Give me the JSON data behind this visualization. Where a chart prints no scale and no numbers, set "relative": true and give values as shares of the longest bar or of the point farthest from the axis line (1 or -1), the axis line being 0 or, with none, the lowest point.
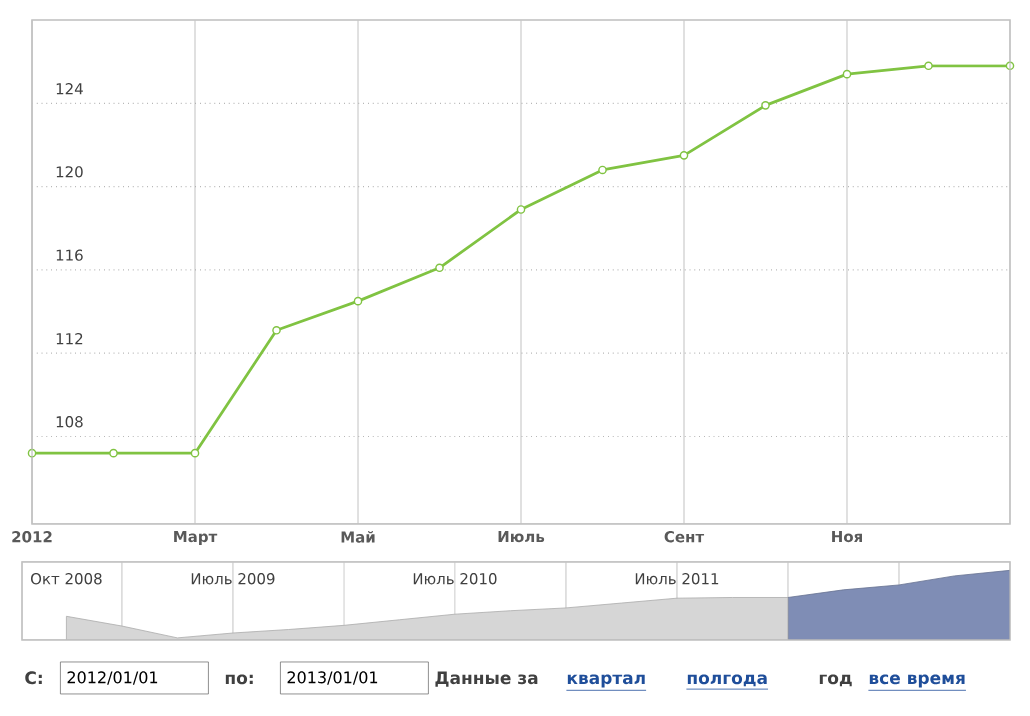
{
  "chart_data": [
    {
      "type": "line",
      "color": "#80c342",
      "marker": "circle",
      "grid": true,
      "categories": [
        "2012",
        null,
        "Март",
        null,
        "Май",
        null,
        "Июль",
        null,
        "Сент",
        null,
        "Ноя",
        null,
        null
      ],
      "values": [
        107.2,
        107.2,
        107.2,
        113.1,
        114.5,
        116.1,
        118.9,
        120.8,
        121.5,
        123.9,
        125.4,
        125.8,
        125.8
      ],
      "ylim": [
        103.8,
        128
      ],
      "yticks": [
        108,
        112,
        116,
        120,
        124
      ]
    },
    {
      "type": "area",
      "relative": true,
      "grid": "x",
      "categories": [
        "Окт 2008",
        null,
        null,
        "Июль 2009",
        null,
        null,
        null,
        "Июль 2010",
        null,
        null,
        null,
        "Июль 2011",
        null,
        null,
        null,
        null,
        null,
        null
      ],
      "series": [
        {
          "color": "#d6d6d6",
          "values": [
            0.34,
            0.2,
            0.03,
            0.1,
            0.15,
            0.21,
            0.29,
            0.37,
            0.42,
            0.46,
            0.53,
            0.6,
            0.61,
            0.61,
            null,
            null,
            null,
            null
          ]
        },
        {
          "color": "#7f8db5",
          "values": [
            null,
            null,
            null,
            null,
            null,
            null,
            null,
            null,
            null,
            null,
            null,
            null,
            null,
            0.61,
            0.72,
            0.79,
            0.92,
            1.0
          ]
        }
      ],
      "annotations": [
        "С:",
        "2012/01/01",
        "по:",
        "2013/01/01",
        "Данные за",
        "квартал",
        "полгода",
        "год",
        "все время"
      ]
    }
  ]
}
